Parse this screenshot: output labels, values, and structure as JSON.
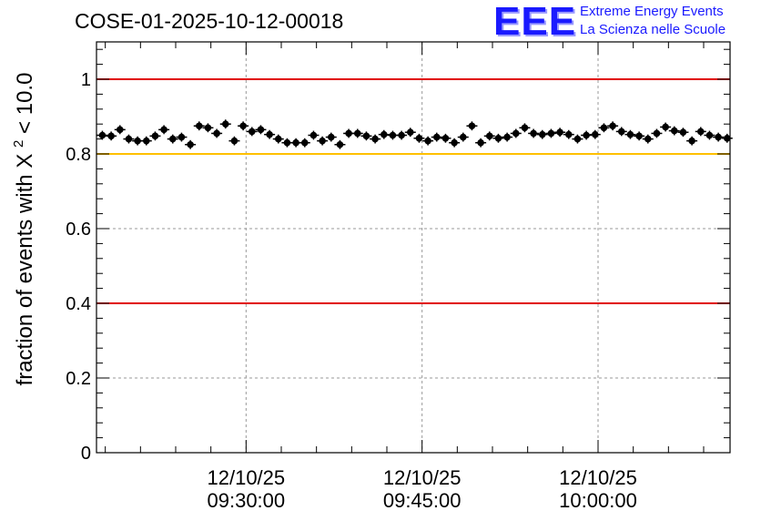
{
  "header": {
    "title": "COSE-01-2025-10-12-00018",
    "logo_text": "EEE",
    "logo_line1": "Extreme Energy Events",
    "logo_line2": "La Scienza nelle Scuole"
  },
  "chart_data": {
    "type": "scatter",
    "title": "COSE-01-2025-10-12-00018",
    "ylabel_prefix": "fraction of events with",
    "ylabel_symbol": "X",
    "ylabel_exponent": "2",
    "ylabel_suffix": "< 10.0",
    "xlabel": "",
    "ylim": [
      0,
      1.1
    ],
    "xlim_minutes": [
      0,
      54
    ],
    "y_ticks": [
      {
        "value": 0,
        "label": "0"
      },
      {
        "value": 0.2,
        "label": "0.2"
      },
      {
        "value": 0.4,
        "label": "0.4"
      },
      {
        "value": 0.6,
        "label": "0.6"
      },
      {
        "value": 0.8,
        "label": "0.8"
      },
      {
        "value": 1,
        "label": "1"
      }
    ],
    "x_ticks": [
      {
        "minute": 12.75,
        "date": "12/10/25",
        "time": "09:30:00"
      },
      {
        "minute": 27.75,
        "date": "12/10/25",
        "time": "09:45:00"
      },
      {
        "minute": 42.75,
        "date": "12/10/25",
        "time": "10:00:00"
      }
    ],
    "grid": true,
    "reference_lines": [
      {
        "value": 1.0,
        "color": "#e00000"
      },
      {
        "value": 0.8,
        "color": "#ffc000"
      },
      {
        "value": 0.4,
        "color": "#e00000"
      }
    ],
    "series": [
      {
        "name": "fraction",
        "marker_color": "#000000",
        "error": 0.012,
        "x": [
          0.5,
          1.25,
          2,
          2.75,
          3.5,
          4.25,
          5,
          5.75,
          6.5,
          7.25,
          8,
          8.75,
          9.5,
          10.25,
          11,
          11.75,
          12.5,
          13.25,
          14,
          14.75,
          15.5,
          16.25,
          17,
          17.75,
          18.5,
          19.25,
          20,
          20.75,
          21.5,
          22.25,
          23,
          23.75,
          24.5,
          25.25,
          26,
          26.75,
          27.5,
          28.25,
          29,
          29.75,
          30.5,
          31.25,
          32,
          32.75,
          33.5,
          34.25,
          35,
          35.75,
          36.5,
          37.25,
          38,
          38.75,
          39.5,
          40.25,
          41,
          41.75,
          42.5,
          43.25,
          44,
          44.75,
          45.5,
          46.25,
          47,
          47.75,
          48.5,
          49.25,
          50,
          50.75,
          51.5,
          52.25,
          53,
          53.75
        ],
        "y": [
          0.85,
          0.848,
          0.865,
          0.84,
          0.835,
          0.835,
          0.848,
          0.865,
          0.84,
          0.845,
          0.825,
          0.875,
          0.87,
          0.855,
          0.88,
          0.835,
          0.875,
          0.86,
          0.865,
          0.852,
          0.84,
          0.83,
          0.83,
          0.83,
          0.85,
          0.835,
          0.845,
          0.825,
          0.855,
          0.855,
          0.848,
          0.84,
          0.852,
          0.85,
          0.85,
          0.858,
          0.842,
          0.835,
          0.845,
          0.842,
          0.83,
          0.845,
          0.875,
          0.83,
          0.848,
          0.842,
          0.845,
          0.855,
          0.87,
          0.855,
          0.852,
          0.855,
          0.858,
          0.852,
          0.84,
          0.85,
          0.852,
          0.87,
          0.875,
          0.86,
          0.852,
          0.848,
          0.84,
          0.855,
          0.872,
          0.862,
          0.858,
          0.835,
          0.86,
          0.85,
          0.845,
          0.842
        ]
      }
    ]
  }
}
